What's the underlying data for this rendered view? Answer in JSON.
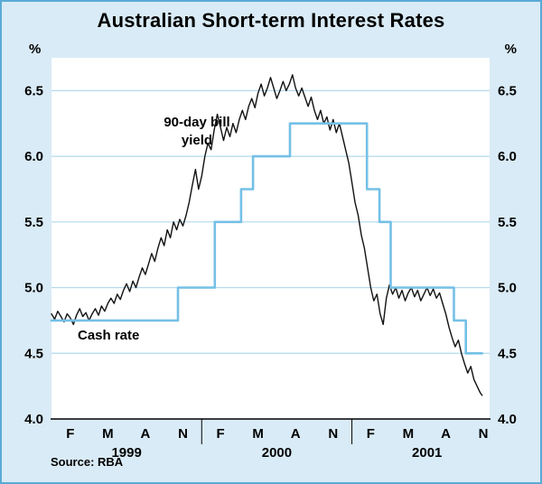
{
  "title": "Australian Short-term Interest Rates",
  "percent_label": "%",
  "source": "Source: RBA",
  "annotations": {
    "bill": "90-day bill\nyield",
    "cash": "Cash rate"
  },
  "colors": {
    "background": "#d9ebf6",
    "plot_background": "#ffffff",
    "grid": "#b3d9ec",
    "axis": "#000000",
    "cash_rate_line": "#74c0e6",
    "bill_line": "#111111",
    "border": "#5aa9d6"
  },
  "chart_data": {
    "type": "line",
    "title": "Australian Short-term Interest Rates",
    "xlabel": "",
    "ylabel": "%",
    "ylim": [
      4.0,
      6.75
    ],
    "xlim": [
      0,
      35
    ],
    "x_unit": "months since Jan 1999",
    "yticks": [
      4.0,
      4.5,
      5.0,
      5.5,
      6.0,
      6.5
    ],
    "gridlines": [
      4.5,
      5.0,
      5.5,
      6.0,
      6.5
    ],
    "grid": "horizontal only",
    "legend_position": "none (in-plot text labels)",
    "xticks": [
      {
        "x": 1.5,
        "label": "F"
      },
      {
        "x": 4.5,
        "label": "M"
      },
      {
        "x": 7.5,
        "label": "A"
      },
      {
        "x": 10.5,
        "label": "N"
      },
      {
        "x": 13.5,
        "label": "F"
      },
      {
        "x": 16.5,
        "label": "M"
      },
      {
        "x": 19.5,
        "label": "A"
      },
      {
        "x": 22.5,
        "label": "N"
      },
      {
        "x": 25.5,
        "label": "F"
      },
      {
        "x": 28.5,
        "label": "M"
      },
      {
        "x": 31.5,
        "label": "A"
      },
      {
        "x": 34.5,
        "label": "N"
      }
    ],
    "year_labels": [
      {
        "x": 6,
        "label": "1999"
      },
      {
        "x": 18,
        "label": "2000"
      },
      {
        "x": 30,
        "label": "2001"
      }
    ],
    "year_separators": [
      12,
      24
    ],
    "series": [
      {
        "name": "90-day bill yield",
        "style": "line",
        "color": "#111111",
        "width": 1.4,
        "points": [
          [
            0,
            4.8
          ],
          [
            0.25,
            4.76
          ],
          [
            0.5,
            4.82
          ],
          [
            0.75,
            4.78
          ],
          [
            1,
            4.74
          ],
          [
            1.25,
            4.8
          ],
          [
            1.5,
            4.77
          ],
          [
            1.75,
            4.72
          ],
          [
            2,
            4.79
          ],
          [
            2.25,
            4.84
          ],
          [
            2.5,
            4.78
          ],
          [
            2.75,
            4.81
          ],
          [
            3,
            4.75
          ],
          [
            3.25,
            4.8
          ],
          [
            3.5,
            4.84
          ],
          [
            3.75,
            4.79
          ],
          [
            4,
            4.86
          ],
          [
            4.25,
            4.82
          ],
          [
            4.5,
            4.88
          ],
          [
            4.75,
            4.92
          ],
          [
            5,
            4.88
          ],
          [
            5.25,
            4.95
          ],
          [
            5.5,
            4.91
          ],
          [
            5.75,
            4.98
          ],
          [
            6,
            5.03
          ],
          [
            6.25,
            4.97
          ],
          [
            6.5,
            5.05
          ],
          [
            6.75,
            5.0
          ],
          [
            7,
            5.08
          ],
          [
            7.25,
            5.15
          ],
          [
            7.5,
            5.1
          ],
          [
            7.75,
            5.18
          ],
          [
            8,
            5.26
          ],
          [
            8.25,
            5.2
          ],
          [
            8.5,
            5.3
          ],
          [
            8.75,
            5.38
          ],
          [
            9,
            5.32
          ],
          [
            9.25,
            5.44
          ],
          [
            9.5,
            5.38
          ],
          [
            9.75,
            5.5
          ],
          [
            10,
            5.44
          ],
          [
            10.25,
            5.52
          ],
          [
            10.5,
            5.47
          ],
          [
            10.75,
            5.55
          ],
          [
            11,
            5.65
          ],
          [
            11.25,
            5.78
          ],
          [
            11.5,
            5.9
          ],
          [
            11.75,
            5.75
          ],
          [
            12,
            5.85
          ],
          [
            12.25,
            6.0
          ],
          [
            12.5,
            6.1
          ],
          [
            12.75,
            6.05
          ],
          [
            13,
            6.2
          ],
          [
            13.25,
            6.32
          ],
          [
            13.5,
            6.22
          ],
          [
            13.75,
            6.12
          ],
          [
            14,
            6.22
          ],
          [
            14.25,
            6.15
          ],
          [
            14.5,
            6.25
          ],
          [
            14.75,
            6.18
          ],
          [
            15,
            6.28
          ],
          [
            15.25,
            6.35
          ],
          [
            15.5,
            6.28
          ],
          [
            15.75,
            6.38
          ],
          [
            16,
            6.44
          ],
          [
            16.25,
            6.37
          ],
          [
            16.5,
            6.48
          ],
          [
            16.75,
            6.55
          ],
          [
            17,
            6.46
          ],
          [
            17.25,
            6.52
          ],
          [
            17.5,
            6.6
          ],
          [
            17.75,
            6.52
          ],
          [
            18,
            6.44
          ],
          [
            18.25,
            6.5
          ],
          [
            18.5,
            6.57
          ],
          [
            18.75,
            6.5
          ],
          [
            19,
            6.55
          ],
          [
            19.25,
            6.62
          ],
          [
            19.5,
            6.52
          ],
          [
            19.75,
            6.46
          ],
          [
            20,
            6.52
          ],
          [
            20.25,
            6.45
          ],
          [
            20.5,
            6.38
          ],
          [
            20.75,
            6.45
          ],
          [
            21,
            6.35
          ],
          [
            21.25,
            6.28
          ],
          [
            21.5,
            6.35
          ],
          [
            21.75,
            6.25
          ],
          [
            22,
            6.3
          ],
          [
            22.25,
            6.2
          ],
          [
            22.5,
            6.28
          ],
          [
            22.75,
            6.18
          ],
          [
            23,
            6.25
          ],
          [
            23.25,
            6.15
          ],
          [
            23.5,
            6.05
          ],
          [
            23.75,
            5.95
          ],
          [
            24,
            5.8
          ],
          [
            24.25,
            5.65
          ],
          [
            24.5,
            5.55
          ],
          [
            24.75,
            5.4
          ],
          [
            25,
            5.3
          ],
          [
            25.25,
            5.15
          ],
          [
            25.5,
            5.0
          ],
          [
            25.75,
            4.9
          ],
          [
            26,
            4.95
          ],
          [
            26.25,
            4.8
          ],
          [
            26.5,
            4.72
          ],
          [
            26.75,
            4.92
          ],
          [
            27,
            5.02
          ],
          [
            27.25,
            4.95
          ],
          [
            27.5,
            5.0
          ],
          [
            27.75,
            4.92
          ],
          [
            28,
            4.98
          ],
          [
            28.25,
            4.9
          ],
          [
            28.5,
            4.96
          ],
          [
            28.75,
            5.0
          ],
          [
            29,
            4.93
          ],
          [
            29.25,
            4.98
          ],
          [
            29.5,
            4.9
          ],
          [
            29.75,
            4.95
          ],
          [
            30,
            5.0
          ],
          [
            30.25,
            4.94
          ],
          [
            30.5,
            4.99
          ],
          [
            30.75,
            4.92
          ],
          [
            31,
            4.96
          ],
          [
            31.25,
            4.88
          ],
          [
            31.5,
            4.8
          ],
          [
            31.75,
            4.7
          ],
          [
            32,
            4.62
          ],
          [
            32.25,
            4.55
          ],
          [
            32.5,
            4.6
          ],
          [
            32.75,
            4.5
          ],
          [
            33,
            4.42
          ],
          [
            33.25,
            4.35
          ],
          [
            33.5,
            4.4
          ],
          [
            33.75,
            4.3
          ],
          [
            34,
            4.25
          ],
          [
            34.25,
            4.2
          ],
          [
            34.4,
            4.18
          ]
        ]
      },
      {
        "name": "Cash rate",
        "style": "step",
        "color": "#74c0e6",
        "width": 2.6,
        "end_x": 34.4,
        "points": [
          [
            0,
            4.75
          ],
          [
            10.1,
            5.0
          ],
          [
            13.05,
            5.5
          ],
          [
            15.15,
            5.75
          ],
          [
            16.1,
            6.0
          ],
          [
            19.05,
            6.25
          ],
          [
            25.2,
            5.75
          ],
          [
            26.2,
            5.5
          ],
          [
            27.1,
            5.0
          ],
          [
            32.15,
            4.75
          ],
          [
            33.1,
            4.5
          ]
        ]
      }
    ],
    "source": "RBA"
  }
}
